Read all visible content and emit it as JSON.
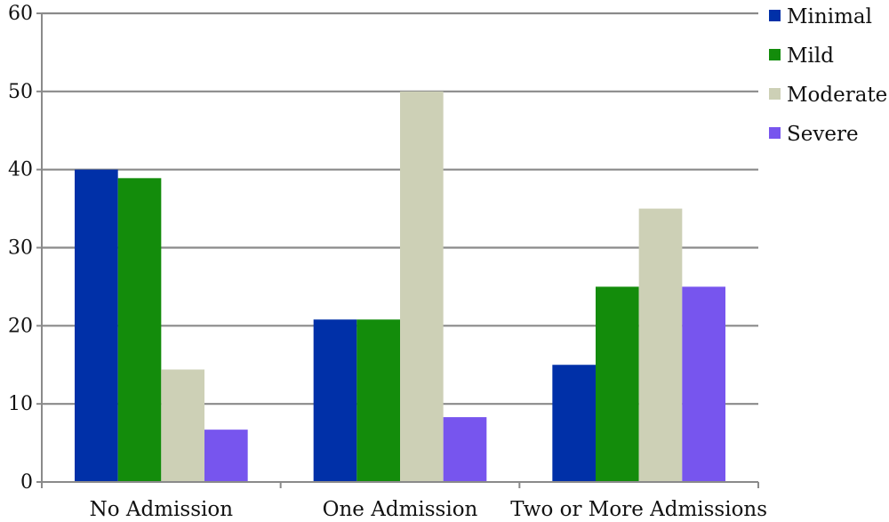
{
  "chart_data": {
    "type": "bar",
    "categories": [
      "No Admission",
      "One Admission",
      "Two or More Admissions"
    ],
    "series": [
      {
        "name": "Minimal",
        "values": [
          40,
          20.8,
          15
        ],
        "color": "#0030a8"
      },
      {
        "name": "Mild",
        "values": [
          38.9,
          20.8,
          25
        ],
        "color": "#138c0b"
      },
      {
        "name": "Moderate",
        "values": [
          14.4,
          50,
          35
        ],
        "color": "#cdd0b6"
      },
      {
        "name": "Severe",
        "values": [
          6.7,
          8.3,
          25
        ],
        "color": "#7755ee"
      }
    ],
    "title": "",
    "xlabel": "",
    "ylabel": "",
    "ylim": [
      0,
      60
    ],
    "yticks": [
      "0",
      "10",
      "20",
      "30",
      "40",
      "50",
      "60"
    ],
    "grid": true,
    "legend_position": "top-right"
  }
}
